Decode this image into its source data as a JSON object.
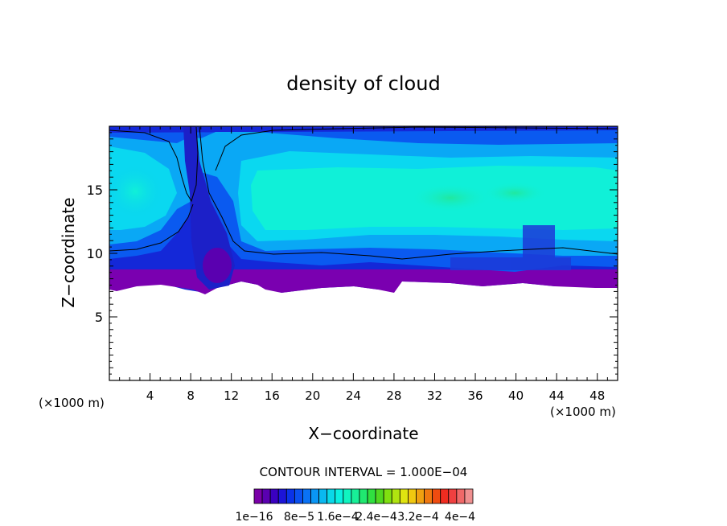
{
  "chart_data": {
    "type": "heatmap",
    "title": "density of cloud",
    "xlabel": "X−coordinate",
    "ylabel": "Z−coordinate",
    "x_unit_left": "(×1000 m)",
    "x_unit_right": "(×1000 m)",
    "xlim": [
      0,
      50
    ],
    "ylim": [
      0,
      20
    ],
    "x_ticks": [
      4,
      8,
      12,
      16,
      20,
      24,
      28,
      32,
      36,
      40,
      44,
      48
    ],
    "y_ticks": [
      5,
      10,
      15
    ],
    "contour_interval_text": "CONTOUR INTERVAL = 1.000E−04",
    "colorbar_labels": [
      "1e−16",
      "8e−5",
      "1.6e−4",
      "2.4e−4",
      "3.2e−4",
      "4e−4"
    ],
    "colorbar_colors": [
      "#7a00a8",
      "#5a00b0",
      "#3a00c0",
      "#1c14d8",
      "#0a32e8",
      "#0a50f0",
      "#0a72f5",
      "#0a96f5",
      "#0ab8f0",
      "#0ad8e8",
      "#0af0e0",
      "#10f5c0",
      "#18f098",
      "#20e870",
      "#30e040",
      "#50d820",
      "#80e010",
      "#b0e410",
      "#e0e410",
      "#f0c810",
      "#f0a010",
      "#f07810",
      "#f04c10",
      "#f02c20",
      "#f04040",
      "#f06868",
      "#f09090"
    ]
  }
}
